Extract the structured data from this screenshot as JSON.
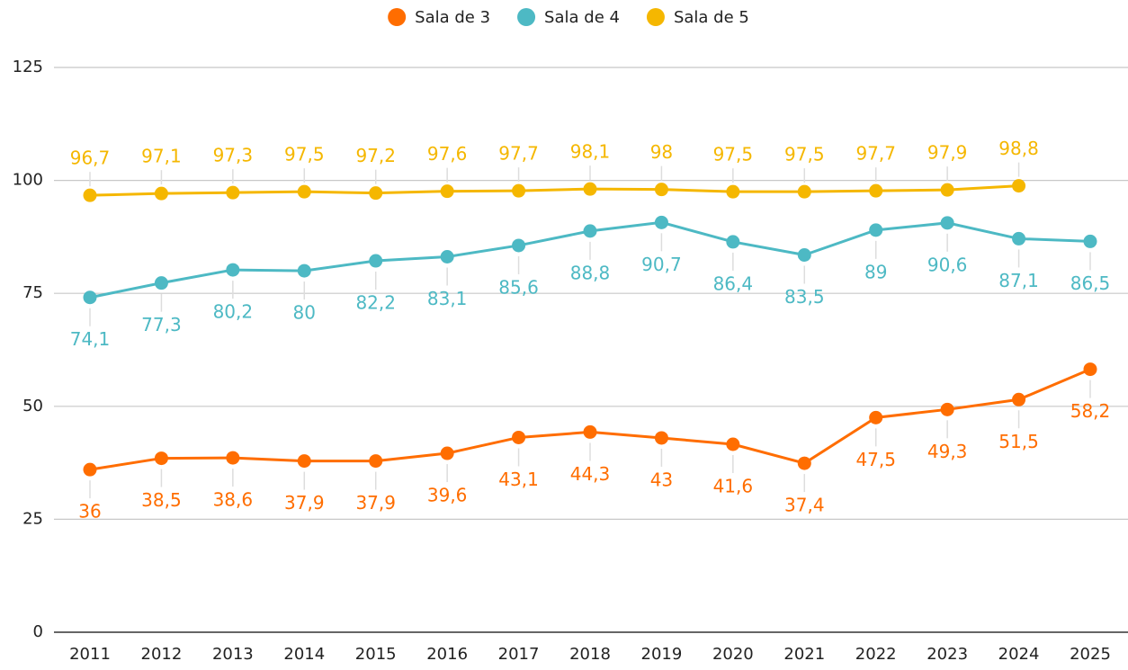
{
  "chart_data": {
    "type": "line",
    "categories": [
      "2011",
      "2012",
      "2013",
      "2014",
      "2015",
      "2016",
      "2017",
      "2018",
      "2019",
      "2020",
      "2021",
      "2022",
      "2023",
      "2024",
      "2025"
    ],
    "series": [
      {
        "name": "Sala de 3",
        "color": "#ff6d00",
        "label_position": "below",
        "values": [
          36,
          38.5,
          38.6,
          37.9,
          37.9,
          39.6,
          43.1,
          44.3,
          43,
          41.6,
          37.4,
          47.5,
          49.3,
          51.5,
          58.2
        ],
        "value_labels": [
          "36",
          "38,5",
          "38,6",
          "37,9",
          "37,9",
          "39,6",
          "43,1",
          "44,3",
          "43",
          "41,6",
          "37,4",
          "47,5",
          "49,3",
          "51,5",
          "58,2"
        ]
      },
      {
        "name": "Sala de 4",
        "color": "#4db9c4",
        "label_position": "below",
        "values": [
          74.1,
          77.3,
          80.2,
          80,
          82.2,
          83.1,
          85.6,
          88.8,
          90.7,
          86.4,
          83.5,
          89,
          90.6,
          87.1,
          86.5
        ],
        "value_labels": [
          "74,1",
          "77,3",
          "80,2",
          "80",
          "82,2",
          "83,1",
          "85,6",
          "88,8",
          "90,7",
          "86,4",
          "83,5",
          "89",
          "90,6",
          "87,1",
          "86,5"
        ]
      },
      {
        "name": "Sala de 5",
        "color": "#f5b700",
        "label_position": "above",
        "values": [
          96.7,
          97.1,
          97.3,
          97.5,
          97.2,
          97.6,
          97.7,
          98.1,
          98,
          97.5,
          97.5,
          97.7,
          97.9,
          98.8,
          null
        ],
        "value_labels": [
          "96,7",
          "97,1",
          "97,3",
          "97,5",
          "97,2",
          "97,6",
          "97,7",
          "98,1",
          "98",
          "97,5",
          "97,5",
          "97,7",
          "97,9",
          "98,8",
          null
        ]
      }
    ],
    "ylim": [
      0,
      125
    ],
    "yticks": [
      0,
      25,
      50,
      75,
      100,
      125
    ],
    "grid": true,
    "legend": "top"
  }
}
